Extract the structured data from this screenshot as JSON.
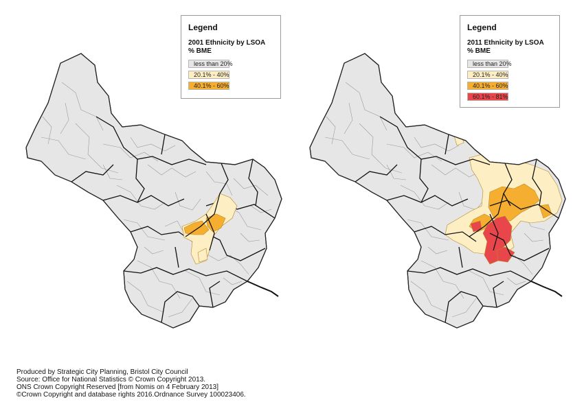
{
  "maps": [
    {
      "legend": {
        "title": "Legend",
        "heading": "2001 Ethnicity by LSOA",
        "unit": "% BME",
        "items": [
          {
            "label": "less than 20%",
            "color": "#e6e6e6"
          },
          {
            "label": "20.1% - 40%",
            "color": "#fdeec3"
          },
          {
            "label": "40.1% - 60%",
            "color": "#f6ae31"
          }
        ]
      }
    },
    {
      "legend": {
        "title": "Legend",
        "heading": "2011 Ethnicity by LSOA",
        "unit": "% BME",
        "items": [
          {
            "label": "less than 20%",
            "color": "#e6e6e6"
          },
          {
            "label": "20.1% - 40%",
            "color": "#fdeec3"
          },
          {
            "label": "40.1% - 60%",
            "color": "#f6ae31"
          },
          {
            "label": "60.1% - 81%",
            "color": "#e8464a"
          }
        ]
      }
    }
  ],
  "credits": [
    "Produced by Strategic City Planning, Bristol City Council",
    "Source: Office for National Statistics © Crown Copyright 2013.",
    "ONS Crown Copyright Reserved [from Nomis on 4 February 2013]",
    " ©Crown Copyright and database rights 2016.Ordnance Survey 100023406."
  ]
}
